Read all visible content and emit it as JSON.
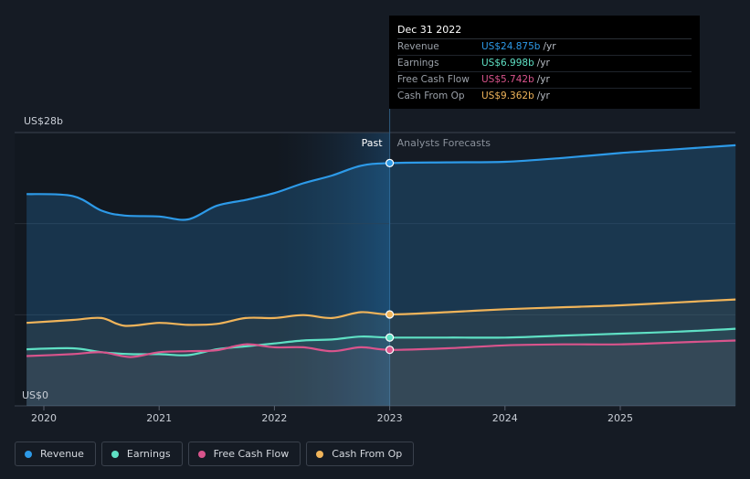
{
  "tooltip": {
    "date": "Dec 31 2022",
    "rows": [
      {
        "label": "Revenue",
        "value": "US$24.875b",
        "unit": "/yr",
        "color": "#2d9ae8"
      },
      {
        "label": "Earnings",
        "value": "US$6.998b",
        "unit": "/yr",
        "color": "#5fe0c4"
      },
      {
        "label": "Free Cash Flow",
        "value": "US$5.742b",
        "unit": "/yr",
        "color": "#d9548c"
      },
      {
        "label": "Cash From Op",
        "value": "US$9.362b",
        "unit": "/yr",
        "color": "#f0b45a"
      }
    ]
  },
  "legend": [
    {
      "label": "Revenue",
      "color": "#2d9ae8"
    },
    {
      "label": "Earnings",
      "color": "#5fe0c4"
    },
    {
      "label": "Free Cash Flow",
      "color": "#d9548c"
    },
    {
      "label": "Cash From Op",
      "color": "#f0b45a"
    }
  ],
  "chart_data": {
    "type": "line",
    "ylabel_top": "US$28b",
    "ylabel_bottom": "US$0",
    "ylim": [
      0,
      28
    ],
    "xlim": [
      2020,
      2026
    ],
    "x_ticks": [
      "2020",
      "2021",
      "2022",
      "2023",
      "2024",
      "2025"
    ],
    "divider_x": 2023,
    "past_label": "Past",
    "forecast_label": "Analysts Forecasts",
    "series": [
      {
        "name": "Revenue",
        "color": "#2d9ae8",
        "points": [
          [
            2019.85,
            21.7
          ],
          [
            2020.25,
            21.5
          ],
          [
            2020.5,
            20.0
          ],
          [
            2020.7,
            19.5
          ],
          [
            2021.0,
            19.4
          ],
          [
            2021.25,
            19.1
          ],
          [
            2021.5,
            20.5
          ],
          [
            2021.75,
            21.1
          ],
          [
            2022.0,
            21.8
          ],
          [
            2022.25,
            22.8
          ],
          [
            2022.5,
            23.6
          ],
          [
            2022.75,
            24.6
          ],
          [
            2023.0,
            24.875
          ],
          [
            2023.5,
            24.95
          ],
          [
            2024.0,
            25.0
          ],
          [
            2024.5,
            25.4
          ],
          [
            2025.0,
            25.9
          ],
          [
            2025.5,
            26.3
          ],
          [
            2026.0,
            26.7
          ]
        ]
      },
      {
        "name": "Earnings",
        "color": "#5fe0c4",
        "points": [
          [
            2019.85,
            5.8
          ],
          [
            2020.25,
            5.9
          ],
          [
            2020.5,
            5.5
          ],
          [
            2020.75,
            5.3
          ],
          [
            2021.0,
            5.3
          ],
          [
            2021.25,
            5.2
          ],
          [
            2021.5,
            5.8
          ],
          [
            2021.75,
            6.1
          ],
          [
            2022.0,
            6.4
          ],
          [
            2022.25,
            6.7
          ],
          [
            2022.5,
            6.8
          ],
          [
            2022.75,
            7.1
          ],
          [
            2023.0,
            6.998
          ],
          [
            2023.5,
            7.0
          ],
          [
            2024.0,
            7.0
          ],
          [
            2024.5,
            7.2
          ],
          [
            2025.0,
            7.4
          ],
          [
            2025.5,
            7.6
          ],
          [
            2026.0,
            7.9
          ]
        ]
      },
      {
        "name": "Free Cash Flow",
        "color": "#d9548c",
        "points": [
          [
            2019.85,
            5.1
          ],
          [
            2020.25,
            5.3
          ],
          [
            2020.5,
            5.5
          ],
          [
            2020.75,
            5.0
          ],
          [
            2021.0,
            5.5
          ],
          [
            2021.25,
            5.6
          ],
          [
            2021.5,
            5.7
          ],
          [
            2021.75,
            6.3
          ],
          [
            2022.0,
            6.0
          ],
          [
            2022.25,
            6.0
          ],
          [
            2022.5,
            5.6
          ],
          [
            2022.75,
            6.0
          ],
          [
            2023.0,
            5.742
          ],
          [
            2023.5,
            5.9
          ],
          [
            2024.0,
            6.2
          ],
          [
            2024.5,
            6.3
          ],
          [
            2025.0,
            6.3
          ],
          [
            2025.5,
            6.5
          ],
          [
            2026.0,
            6.7
          ]
        ]
      },
      {
        "name": "Cash From Op",
        "color": "#f0b45a",
        "points": [
          [
            2019.85,
            8.5
          ],
          [
            2020.25,
            8.8
          ],
          [
            2020.5,
            9.0
          ],
          [
            2020.7,
            8.2
          ],
          [
            2021.0,
            8.5
          ],
          [
            2021.25,
            8.3
          ],
          [
            2021.5,
            8.4
          ],
          [
            2021.75,
            9.0
          ],
          [
            2022.0,
            9.0
          ],
          [
            2022.25,
            9.3
          ],
          [
            2022.5,
            9.0
          ],
          [
            2022.75,
            9.6
          ],
          [
            2023.0,
            9.362
          ],
          [
            2023.5,
            9.6
          ],
          [
            2024.0,
            9.9
          ],
          [
            2024.5,
            10.1
          ],
          [
            2025.0,
            10.3
          ],
          [
            2025.5,
            10.6
          ],
          [
            2026.0,
            10.9
          ]
        ]
      }
    ]
  }
}
